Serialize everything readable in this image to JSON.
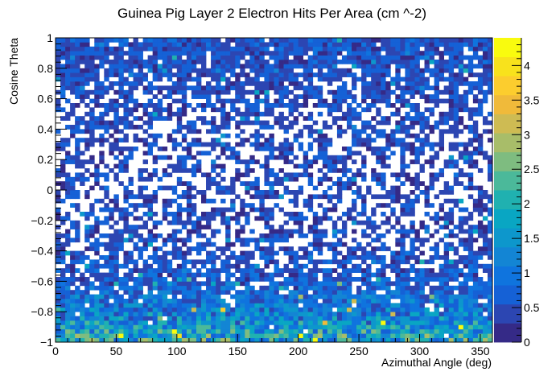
{
  "chart_data": {
    "type": "heatmap",
    "title": "Guinea Pig Layer 2 Electron Hits Per Area (cm ^-2)",
    "xlabel": "Azimuthal Angle (deg)",
    "ylabel": "Cosine Theta",
    "xlim": [
      0,
      360
    ],
    "ylim": [
      -1,
      1
    ],
    "zlim": [
      0,
      4.4
    ],
    "x_bins": 90,
    "y_bins": 70,
    "x_ticks": [
      0,
      50,
      100,
      150,
      200,
      250,
      300,
      350
    ],
    "x_tick_labels": [
      "0",
      "50",
      "100",
      "150",
      "200",
      "250",
      "300",
      "350"
    ],
    "y_ticks": [
      -1,
      -0.8,
      -0.6,
      -0.4,
      -0.2,
      0,
      0.2,
      0.4,
      0.6,
      0.8,
      1
    ],
    "y_tick_labels": [
      "−1",
      "−0.8",
      "−0.6",
      "−0.4",
      "−0.2",
      "0",
      "0.2",
      "0.4",
      "0.6",
      "0.8",
      "1"
    ],
    "z_ticks": [
      0,
      0.5,
      1,
      1.5,
      2,
      2.5,
      3,
      3.5,
      4
    ],
    "z_tick_labels": [
      "0",
      "0.5",
      "1",
      "1.5",
      "2",
      "2.5",
      "3",
      "3.5",
      "4"
    ],
    "occupancy_profile": [
      {
        "cos_theta": -1.0,
        "fill_fraction": 1.0,
        "mean_hits": 1.9
      },
      {
        "cos_theta": -0.8,
        "fill_fraction": 0.97,
        "mean_hits": 1.1
      },
      {
        "cos_theta": -0.6,
        "fill_fraction": 0.82,
        "mean_hits": 0.65
      },
      {
        "cos_theta": -0.4,
        "fill_fraction": 0.62,
        "mean_hits": 0.5
      },
      {
        "cos_theta": -0.2,
        "fill_fraction": 0.55,
        "mean_hits": 0.45
      },
      {
        "cos_theta": 0.0,
        "fill_fraction": 0.52,
        "mean_hits": 0.45
      },
      {
        "cos_theta": 0.2,
        "fill_fraction": 0.5,
        "mean_hits": 0.45
      },
      {
        "cos_theta": 0.4,
        "fill_fraction": 0.54,
        "mean_hits": 0.45
      },
      {
        "cos_theta": 0.6,
        "fill_fraction": 0.66,
        "mean_hits": 0.5
      },
      {
        "cos_theta": 0.8,
        "fill_fraction": 0.86,
        "mean_hits": 0.5
      },
      {
        "cos_theta": 1.0,
        "fill_fraction": 0.98,
        "mean_hits": 0.55
      }
    ],
    "palette": [
      "#352a87",
      "#2c46b2",
      "#1561d6",
      "#0f74de",
      "#1385d4",
      "#0d97cc",
      "#09a6c3",
      "#20b1b0",
      "#4bb99a",
      "#7ebc80",
      "#a8bd69",
      "#cebb53",
      "#f0ba3a",
      "#fccd2e",
      "#f8e21c",
      "#f9fb0e"
    ],
    "seed": 20240517
  }
}
